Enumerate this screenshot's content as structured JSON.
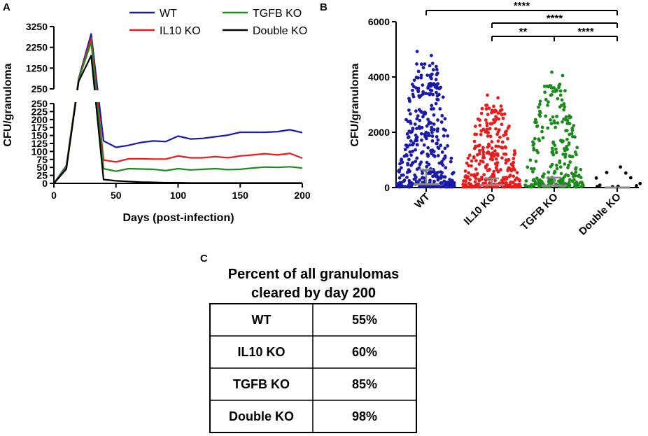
{
  "chart_data": [
    {
      "panel": "A",
      "type": "line",
      "xlabel": "Days (post-infection)",
      "ylabel": "CFU/granuloma",
      "x_ticks": [
        "0",
        "50",
        "100",
        "150",
        "200"
      ],
      "y_ticks_lower": [
        "0",
        "25",
        "50",
        "75",
        "100",
        "125",
        "150",
        "175",
        "200",
        "225",
        "250"
      ],
      "y_ticks_upper": [
        "250",
        "1250",
        "2250",
        "3250"
      ],
      "xlim": [
        0,
        200
      ],
      "ylim_lower": [
        0,
        250
      ],
      "ylim_upper": [
        250,
        3250
      ],
      "series": [
        {
          "name": "WT",
          "color": "#1a1aa8",
          "x": [
            0,
            10,
            20,
            30,
            40,
            50,
            60,
            70,
            80,
            90,
            100,
            110,
            120,
            130,
            140,
            150,
            160,
            170,
            180,
            190,
            200
          ],
          "y": [
            0,
            55,
            760,
            2900,
            133,
            113,
            119,
            128,
            133,
            131,
            148,
            139,
            141,
            146,
            151,
            160,
            160,
            160,
            162,
            168,
            159
          ]
        },
        {
          "name": "IL10 KO",
          "color": "#e81c1c",
          "x": [
            0,
            10,
            20,
            30,
            40,
            50,
            60,
            70,
            80,
            90,
            100,
            110,
            120,
            130,
            140,
            150,
            160,
            170,
            180,
            190,
            200
          ],
          "y": [
            0,
            52,
            740,
            2700,
            73,
            67,
            77,
            77,
            76,
            76,
            86,
            80,
            80,
            84,
            80,
            86,
            89,
            93,
            89,
            94,
            79
          ]
        },
        {
          "name": "TGFB KO",
          "color": "#1e8a1e",
          "x": [
            0,
            10,
            20,
            30,
            40,
            50,
            60,
            70,
            80,
            90,
            100,
            110,
            120,
            130,
            140,
            150,
            160,
            170,
            180,
            190,
            200
          ],
          "y": [
            0,
            50,
            720,
            2500,
            46,
            38,
            46,
            45,
            44,
            40,
            46,
            42,
            44,
            46,
            43,
            44,
            48,
            51,
            50,
            52,
            48
          ]
        },
        {
          "name": "Double KO",
          "color": "#000000",
          "x": [
            0,
            10,
            20,
            30,
            40,
            50,
            60,
            70,
            80,
            90,
            100,
            110,
            120,
            130,
            140,
            150,
            160,
            170,
            180,
            190,
            200
          ],
          "y": [
            0,
            45,
            620,
            1850,
            12,
            8,
            6,
            4,
            3,
            2,
            2,
            1,
            1,
            1,
            1,
            1,
            1,
            1,
            1,
            1,
            1
          ]
        }
      ]
    },
    {
      "panel": "B",
      "type": "scatter",
      "ylabel": "CFU/granuloma",
      "ylim": [
        0,
        6000
      ],
      "y_ticks": [
        "0",
        "2000",
        "4000",
        "6000"
      ],
      "categories": [
        "WT",
        "IL10 KO",
        "TGFB KO",
        "Double KO"
      ],
      "colors": [
        "#1a1aa8",
        "#e81c1c",
        "#1e8a1e",
        "#000000"
      ],
      "max_values": [
        4900,
        3320,
        4150,
        720
      ],
      "medians": [
        120,
        90,
        70,
        0
      ],
      "upper_whisker": [
        650,
        330,
        360,
        0
      ],
      "comparisons": [
        {
          "from": "WT",
          "to": "Double KO",
          "label": "****"
        },
        {
          "from": "IL10 KO",
          "to": "Double KO",
          "label": "****"
        },
        {
          "from": "IL10 KO",
          "to": "TGFB KO",
          "label": "**"
        },
        {
          "from": "TGFB KO",
          "to": "Double KO",
          "label": "****"
        }
      ]
    },
    {
      "panel": "C",
      "type": "table",
      "title_line1": "Percent of all granulomas",
      "title_line2": "cleared by day 200",
      "rows": [
        {
          "group": "WT",
          "value": "55%"
        },
        {
          "group": "IL10 KO",
          "value": "60%"
        },
        {
          "group": "TGFB KO",
          "value": "85%"
        },
        {
          "group": "Double KO",
          "value": "98%"
        }
      ]
    }
  ],
  "panel_labels": {
    "a": "A",
    "b": "B",
    "c": "C"
  }
}
